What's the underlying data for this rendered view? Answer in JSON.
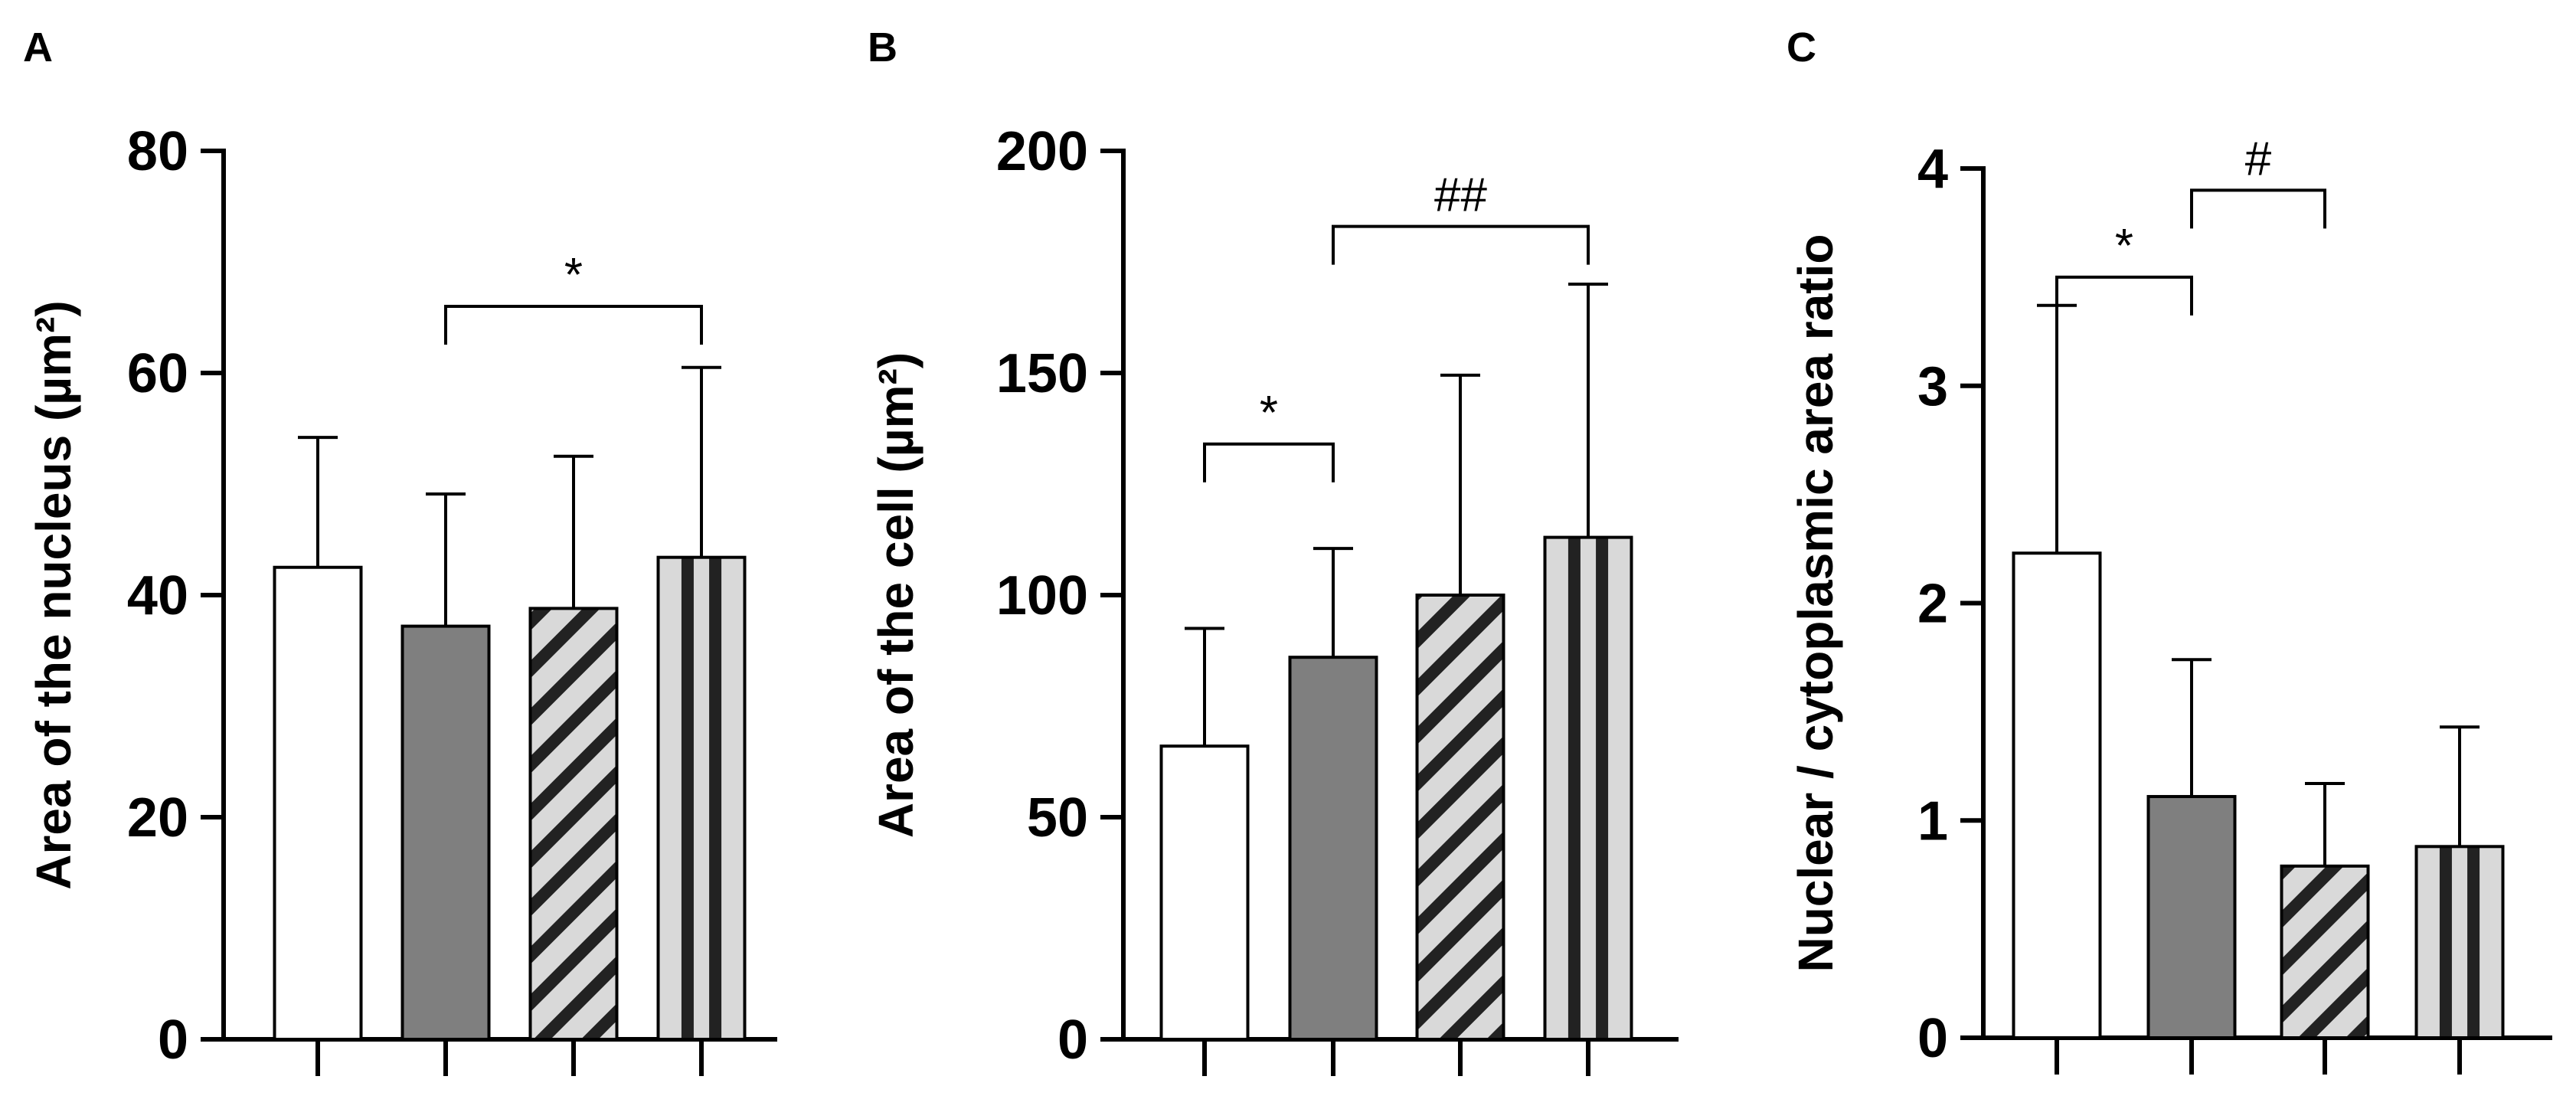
{
  "colors": {
    "white": "#ffffff",
    "dark_gray": "#7f7f7f",
    "light_gray": "#d9d9d9",
    "black": "#000000"
  },
  "chart_data": [
    {
      "panel": "A",
      "type": "bar",
      "ylabel": "Area of the nucleus (µm²)",
      "ylim": [
        0,
        80
      ],
      "yticks": [
        0,
        20,
        40,
        60,
        80
      ],
      "ytick_labels": [
        "0",
        "20",
        "40",
        "60",
        "80"
      ],
      "categories": [
        "",
        "",
        "",
        ""
      ],
      "values": [
        42.5,
        37.2,
        38.8,
        43.4
      ],
      "errors": [
        11.7,
        11.9,
        13.7,
        17.1
      ],
      "fills": [
        "white",
        "dark",
        "hatched-diagonal",
        "striped-vertical"
      ],
      "significance": [
        {
          "from": 1,
          "to": 3,
          "y": 66,
          "label": "*"
        }
      ]
    },
    {
      "panel": "B",
      "type": "bar",
      "ylabel": "Area of the cell (µm²)",
      "ylim": [
        0,
        200
      ],
      "yticks": [
        0,
        50,
        100,
        150,
        200
      ],
      "ytick_labels": [
        "0",
        "50",
        "100",
        "150",
        "200"
      ],
      "categories": [
        "",
        "",
        "",
        ""
      ],
      "values": [
        66,
        86,
        100,
        113
      ],
      "errors": [
        26.5,
        24.5,
        49.5,
        57
      ],
      "fills": [
        "white",
        "dark",
        "hatched-diagonal",
        "striped-vertical"
      ],
      "significance": [
        {
          "from": 0,
          "to": 1,
          "y": 134,
          "label": "*"
        },
        {
          "from": 1,
          "to": 3,
          "y": 183,
          "label": "##"
        }
      ]
    },
    {
      "panel": "C",
      "type": "bar",
      "ylabel": "Nuclear / cytoplasmic area ratio",
      "ylim": [
        0,
        4
      ],
      "yticks": [
        0,
        1,
        2,
        3,
        4
      ],
      "ytick_labels": [
        "0",
        "1",
        "2",
        "3",
        "4"
      ],
      "categories": [
        "",
        "",
        "",
        ""
      ],
      "values": [
        2.23,
        1.11,
        0.79,
        0.88
      ],
      "errors": [
        1.14,
        0.63,
        0.38,
        0.55
      ],
      "fills": [
        "white",
        "dark",
        "hatched-diagonal",
        "striped-vertical"
      ],
      "significance": [
        {
          "from": 0,
          "to": 1,
          "y": 3.5,
          "label": "*"
        },
        {
          "from": 1,
          "to": 2,
          "y": 3.9,
          "label": "#"
        }
      ]
    }
  ]
}
